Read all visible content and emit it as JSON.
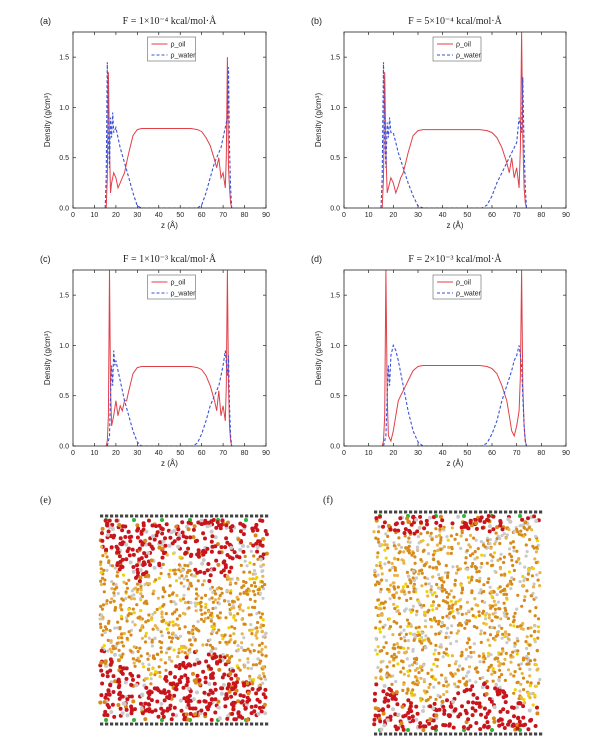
{
  "colors": {
    "oil": "#e0404a",
    "water": "#3a52d8",
    "oil_atom": "#c8151c",
    "chain": "#d78a1a",
    "chain_light": "#e9b54a",
    "hydrogen": "#c9c9c9",
    "yellow_atom": "#f0d400",
    "wall": "#444444",
    "green_atom": "#2fb43a"
  },
  "snapshots": [
    {
      "label": "(e)"
    },
    {
      "label": "(f)"
    }
  ],
  "chart_data": [
    {
      "type": "line",
      "panel_label": "(a)",
      "title": "F = 1×10⁻⁴ kcal/mol·Å",
      "xlabel": "z (Å)",
      "ylabel": "Density (g/cm³)",
      "xlim": [
        0,
        90
      ],
      "ylim": [
        0,
        1.75
      ],
      "xticks": [
        "0",
        "10",
        "20",
        "30",
        "40",
        "50",
        "60",
        "70",
        "80",
        "90"
      ],
      "yticks": [
        "0.0",
        "0.5",
        "1.0",
        "1.5"
      ],
      "legend": "top-center",
      "series": [
        {
          "name": "ρ_oil",
          "style": "solid",
          "x": [
            15.5,
            16,
            16.5,
            17,
            17.5,
            18,
            19,
            20,
            21,
            22,
            23,
            24,
            25,
            26,
            28,
            30,
            32,
            35,
            40,
            45,
            50,
            55,
            58,
            60,
            62,
            64,
            66,
            67,
            68,
            69,
            70,
            71,
            71.5,
            72,
            72.5,
            73,
            73.5,
            74
          ],
          "y": [
            0,
            0.3,
            1.35,
            0.6,
            0.15,
            0.25,
            0.35,
            0.3,
            0.2,
            0.25,
            0.3,
            0.35,
            0.45,
            0.55,
            0.72,
            0.78,
            0.79,
            0.79,
            0.79,
            0.79,
            0.79,
            0.79,
            0.78,
            0.76,
            0.7,
            0.62,
            0.48,
            0.4,
            0.5,
            0.3,
            0.35,
            0.2,
            0.5,
            1.5,
            0.4,
            0.2,
            0.05,
            0
          ]
        },
        {
          "name": "ρ_water",
          "style": "dashed",
          "x": [
            15,
            15.5,
            16,
            16.5,
            17,
            17.5,
            18,
            18.5,
            19,
            20,
            21,
            22,
            24,
            26,
            28,
            30,
            32,
            58,
            60,
            62,
            64,
            66,
            68,
            69,
            70,
            71,
            72,
            72.5,
            73,
            73.5,
            74
          ],
          "y": [
            0,
            0.3,
            1.45,
            0.7,
            0.4,
            0.9,
            0.7,
            0.95,
            0.75,
            0.8,
            0.7,
            0.6,
            0.45,
            0.3,
            0.15,
            0.02,
            0,
            0,
            0.03,
            0.15,
            0.3,
            0.45,
            0.55,
            0.6,
            0.7,
            0.8,
            0.9,
            1.4,
            0.6,
            0.2,
            0
          ]
        }
      ]
    },
    {
      "type": "line",
      "panel_label": "(b)",
      "title": "F = 5×10⁻⁴ kcal/mol·Å",
      "xlabel": "z (Å)",
      "ylabel": "Density (g/cm³)",
      "xlim": [
        0,
        90
      ],
      "ylim": [
        0,
        1.75
      ],
      "xticks": [
        "0",
        "10",
        "20",
        "30",
        "40",
        "50",
        "60",
        "70",
        "80",
        "90"
      ],
      "yticks": [
        "0.0",
        "0.5",
        "1.0",
        "1.5"
      ],
      "legend": "top-center",
      "series": [
        {
          "name": "ρ_oil",
          "style": "solid",
          "x": [
            15.5,
            16,
            16.5,
            17,
            17.5,
            18,
            19,
            20,
            21,
            22,
            23,
            24,
            25,
            26,
            28,
            30,
            32,
            35,
            40,
            45,
            50,
            55,
            58,
            60,
            62,
            64,
            66,
            67,
            68,
            69,
            70,
            71,
            71.5,
            72,
            72.5,
            73,
            73.5,
            74
          ],
          "y": [
            0,
            0.3,
            1.35,
            0.55,
            0.15,
            0.2,
            0.3,
            0.25,
            0.15,
            0.22,
            0.3,
            0.35,
            0.45,
            0.55,
            0.72,
            0.77,
            0.78,
            0.78,
            0.78,
            0.78,
            0.78,
            0.78,
            0.77,
            0.75,
            0.7,
            0.6,
            0.45,
            0.35,
            0.5,
            0.3,
            0.4,
            0.2,
            0.6,
            1.75,
            0.7,
            0.2,
            0.05,
            0
          ]
        },
        {
          "name": "ρ_water",
          "style": "dashed",
          "x": [
            15,
            15.5,
            16,
            16.5,
            17,
            17.5,
            18,
            18.5,
            19,
            20,
            21,
            22,
            24,
            26,
            28,
            30,
            32,
            56,
            58,
            60,
            62,
            64,
            66,
            68,
            69,
            70,
            71,
            72,
            72.5,
            73,
            73.5,
            74
          ],
          "y": [
            0,
            0.3,
            1.45,
            0.7,
            0.4,
            0.85,
            0.7,
            0.9,
            0.75,
            0.75,
            0.65,
            0.55,
            0.4,
            0.25,
            0.12,
            0.02,
            0,
            0,
            0.03,
            0.12,
            0.25,
            0.35,
            0.45,
            0.55,
            0.6,
            0.65,
            0.9,
            0.75,
            1.3,
            0.6,
            0.2,
            0
          ]
        }
      ]
    },
    {
      "type": "line",
      "panel_label": "(c)",
      "title": "F = 1×10⁻³ kcal/mol·Å",
      "xlabel": "z (Å)",
      "ylabel": "Density (g/cm³)",
      "xlim": [
        0,
        90
      ],
      "ylim": [
        0,
        1.75
      ],
      "xticks": [
        "0",
        "10",
        "20",
        "30",
        "40",
        "50",
        "60",
        "70",
        "80",
        "90"
      ],
      "yticks": [
        "0.0",
        "0.5",
        "1.0",
        "1.5"
      ],
      "legend": "top-center",
      "series": [
        {
          "name": "ρ_oil",
          "style": "solid",
          "x": [
            15.5,
            16,
            16.5,
            17,
            17.5,
            18,
            19,
            20,
            21,
            22,
            23,
            24,
            25,
            26,
            28,
            30,
            32,
            35,
            40,
            45,
            50,
            55,
            58,
            60,
            62,
            64,
            66,
            67,
            68,
            69,
            70,
            71,
            71.5,
            72,
            72.5,
            73,
            73.5,
            74
          ],
          "y": [
            0,
            0.05,
            0.3,
            1.75,
            0.6,
            0.2,
            0.3,
            0.45,
            0.3,
            0.4,
            0.35,
            0.45,
            0.45,
            0.55,
            0.72,
            0.78,
            0.79,
            0.79,
            0.79,
            0.79,
            0.79,
            0.79,
            0.78,
            0.76,
            0.7,
            0.6,
            0.45,
            0.35,
            0.55,
            0.3,
            0.4,
            0.25,
            0.6,
            1.75,
            0.6,
            0.2,
            0.05,
            0
          ]
        },
        {
          "name": "ρ_water",
          "style": "dashed",
          "x": [
            16,
            17,
            17.5,
            18,
            18.5,
            19,
            19.5,
            20,
            21,
            22,
            24,
            26,
            28,
            30,
            32,
            56,
            58,
            60,
            62,
            64,
            66,
            68,
            69,
            70,
            71,
            72,
            72.5,
            73,
            73.5,
            74
          ],
          "y": [
            0,
            0.1,
            0.5,
            0.8,
            0.6,
            0.95,
            0.8,
            0.85,
            0.75,
            0.65,
            0.45,
            0.3,
            0.15,
            0.04,
            0,
            0,
            0.03,
            0.12,
            0.25,
            0.4,
            0.5,
            0.6,
            0.7,
            0.8,
            0.95,
            0.7,
            0.9,
            0.4,
            0.1,
            0
          ]
        }
      ]
    },
    {
      "type": "line",
      "panel_label": "(d)",
      "title": "F = 2×10⁻³ kcal/mol·Å",
      "xlabel": "z (Å)",
      "ylabel": "Density (g/cm³)",
      "xlim": [
        0,
        90
      ],
      "ylim": [
        0,
        1.75
      ],
      "xticks": [
        "0",
        "10",
        "20",
        "30",
        "40",
        "50",
        "60",
        "70",
        "80",
        "90"
      ],
      "yticks": [
        "0.0",
        "0.5",
        "1.0",
        "1.5"
      ],
      "legend": "top-center",
      "series": [
        {
          "name": "ρ_oil",
          "style": "solid",
          "x": [
            15.5,
            16,
            16.5,
            17,
            17.5,
            18,
            19,
            20,
            21,
            22,
            23,
            24,
            25,
            26,
            28,
            30,
            32,
            35,
            40,
            45,
            50,
            55,
            58,
            60,
            62,
            64,
            66,
            67,
            68,
            69,
            70,
            71,
            71.5,
            72,
            72.5,
            73,
            73.5,
            74
          ],
          "y": [
            0,
            0.05,
            0.3,
            1.75,
            0.5,
            0.1,
            0.05,
            0.15,
            0.3,
            0.45,
            0.5,
            0.55,
            0.6,
            0.65,
            0.75,
            0.79,
            0.8,
            0.8,
            0.8,
            0.8,
            0.8,
            0.8,
            0.79,
            0.77,
            0.72,
            0.6,
            0.45,
            0.3,
            0.15,
            0.1,
            0.2,
            0.35,
            0.7,
            1.75,
            0.6,
            0.2,
            0.05,
            0
          ]
        },
        {
          "name": "ρ_water",
          "style": "dashed",
          "x": [
            16,
            17,
            17.5,
            18,
            18.5,
            19,
            19.5,
            20,
            21,
            22,
            24,
            26,
            28,
            30,
            32,
            56,
            58,
            60,
            62,
            64,
            66,
            68,
            69,
            70,
            71,
            72,
            72.5,
            73,
            73.5,
            74
          ],
          "y": [
            0,
            0.1,
            0.5,
            0.8,
            0.6,
            0.9,
            0.95,
            1.0,
            0.95,
            0.85,
            0.6,
            0.35,
            0.15,
            0.04,
            0,
            0,
            0.03,
            0.12,
            0.25,
            0.45,
            0.6,
            0.75,
            0.85,
            0.9,
            1.0,
            0.8,
            0.5,
            0.2,
            0.05,
            0
          ]
        }
      ]
    }
  ]
}
